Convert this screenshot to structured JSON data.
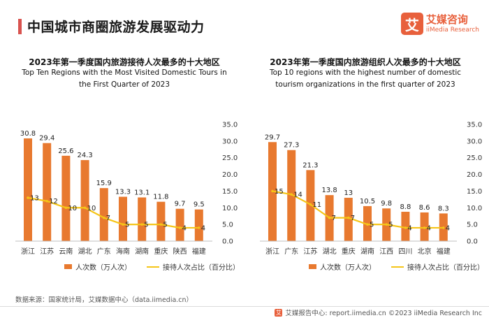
{
  "page": {
    "title": "中国城市商圈旅游发展驱动力",
    "logo_mark": "艾",
    "logo_cn": "艾媒咨询",
    "logo_en": "iiMedia Research",
    "source": "数据来源：国家统计局，艾媒数据中心（data.iimedia.cn）",
    "footer": "艾媒报告中心: report.iimedia.cn  ©2023 iiMedia Research Inc",
    "colors": {
      "bar": "#e8792f",
      "line": "#f5c518",
      "accent": "#d9534f"
    }
  },
  "chart_data": [
    {
      "type": "bar",
      "title": "2023年第一季度国内旅游接待人次最多的十大地区",
      "subtitle": "Top Ten Regions with the Most Visited Domestic Tours in the First Quarter of 2023",
      "categories": [
        "浙江",
        "江苏",
        "云南",
        "湖北",
        "广东",
        "海南",
        "湖南",
        "重庆",
        "陕西",
        "福建"
      ],
      "series": [
        {
          "name": "人次数（万人次）",
          "type": "bar",
          "axis": "left",
          "values": [
            30.8,
            29.4,
            25.6,
            24.3,
            15.9,
            13.3,
            13.1,
            11.8,
            9.7,
            9.5
          ]
        },
        {
          "name": "接待人次占比（百分比）",
          "type": "line",
          "axis": "right",
          "values": [
            13,
            12,
            10,
            10,
            7,
            5,
            5,
            5,
            4,
            4
          ]
        }
      ],
      "ylim": [
        0,
        35
      ],
      "y_ticks": [
        "0.0",
        "5.0",
        "10.0",
        "15.0",
        "20.0",
        "25.0",
        "30.0",
        "35.0"
      ],
      "grid": false,
      "legend_position": "bottom"
    },
    {
      "type": "bar",
      "title": "2023年第一季度国内旅游组织人次最多的十大地区",
      "subtitle": "Top 10 regions with the highest number of domestic tourism organizations in the first quarter of 2023",
      "categories": [
        "浙江",
        "广东",
        "江苏",
        "湖北",
        "重庆",
        "湖南",
        "江西",
        "四川",
        "北京",
        "福建"
      ],
      "series": [
        {
          "name": "人次数（万人次）",
          "type": "bar",
          "axis": "left",
          "values": [
            29.7,
            27.3,
            21.3,
            13.8,
            13.0,
            10.5,
            9.8,
            8.8,
            8.6,
            8.3
          ]
        },
        {
          "name": "接待人次占比（百分比）",
          "type": "line",
          "axis": "right",
          "values": [
            15,
            14,
            11,
            7,
            7,
            5,
            5,
            4,
            4,
            4
          ]
        }
      ],
      "ylim": [
        0,
        35
      ],
      "y_ticks": [
        "0.0",
        "5.0",
        "10.0",
        "15.0",
        "20.0",
        "25.0",
        "30.0",
        "35.0"
      ],
      "grid": false,
      "legend_position": "bottom"
    }
  ]
}
